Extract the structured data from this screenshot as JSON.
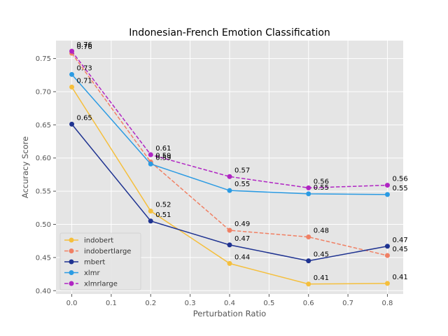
{
  "chart_data": {
    "type": "line",
    "title": "Indonesian-French Emotion Classification",
    "xlabel": "Perturbation Ratio",
    "ylabel": "Accuracy Score",
    "x": [
      0.0,
      0.2,
      0.4,
      0.6,
      0.8
    ],
    "x_ticks": [
      "0.0",
      "0.1",
      "0.2",
      "0.3",
      "0.4",
      "0.5",
      "0.6",
      "0.7",
      "0.8"
    ],
    "y_ticks": [
      "0.40",
      "0.45",
      "0.50",
      "0.55",
      "0.60",
      "0.65",
      "0.70",
      "0.75"
    ],
    "xlim": [
      -0.04,
      0.84
    ],
    "ylim": [
      0.395,
      0.777
    ],
    "grid": true,
    "legend_position": "lower-left",
    "series": [
      {
        "name": "indobert",
        "color": "#f5bf3c",
        "dash": false,
        "values": [
          0.707,
          0.52,
          0.441,
          0.41,
          0.411
        ],
        "labels": [
          "0.71",
          "0.52",
          "0.44",
          "0.41",
          "0.41"
        ]
      },
      {
        "name": "indobertlarge",
        "color": "#f08064",
        "dash": true,
        "values": [
          0.758,
          0.594,
          0.491,
          0.481,
          0.453
        ],
        "labels": [
          "0.76",
          "0.59",
          "0.49",
          "0.48",
          "0.45"
        ]
      },
      {
        "name": "mbert",
        "color": "#1f3391",
        "dash": false,
        "values": [
          0.651,
          0.505,
          0.469,
          0.445,
          0.467
        ],
        "labels": [
          "0.65",
          "0.51",
          "0.47",
          "0.45",
          "0.47"
        ]
      },
      {
        "name": "xlmr",
        "color": "#2b9be3",
        "dash": false,
        "values": [
          0.726,
          0.591,
          0.551,
          0.546,
          0.545
        ],
        "labels": [
          "0.73",
          "0.59",
          "0.55",
          "0.55",
          "0.55"
        ]
      },
      {
        "name": "xlmrlarge",
        "color": "#b025c3",
        "dash": true,
        "values": [
          0.761,
          0.605,
          0.572,
          0.555,
          0.559
        ],
        "labels": [
          "0.76",
          "0.61",
          "0.57",
          "0.56",
          "0.56"
        ]
      }
    ]
  }
}
